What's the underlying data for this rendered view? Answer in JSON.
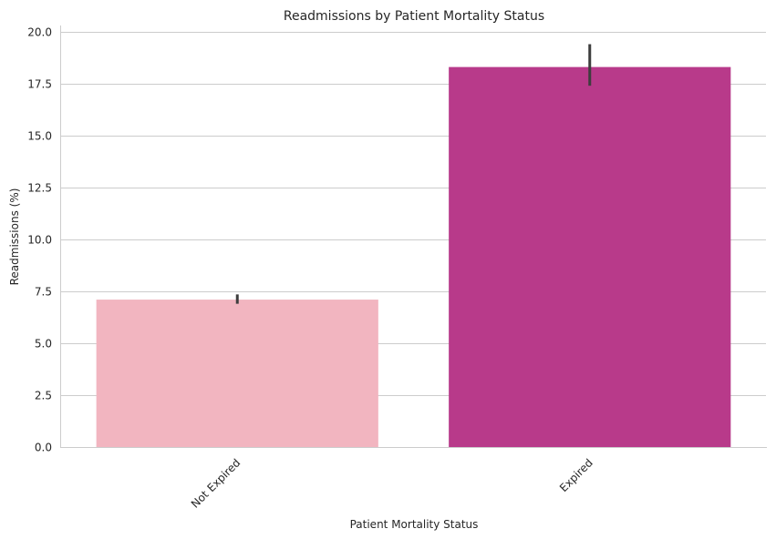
{
  "chart_data": {
    "type": "bar",
    "title": "Readmissions by Patient Mortality Status",
    "xlabel": "Patient Mortality Status",
    "ylabel": "Readmissions (%)",
    "categories": [
      "Not Expired",
      "Expired"
    ],
    "values": [
      7.1,
      18.3
    ],
    "error_low": [
      6.9,
      17.4
    ],
    "error_high": [
      7.35,
      19.4
    ],
    "colors": [
      "#f2b5c0",
      "#b83a8a"
    ],
    "ylim": [
      0,
      20.3
    ],
    "yticks": [
      0.0,
      2.5,
      5.0,
      7.5,
      10.0,
      12.5,
      15.0,
      17.5,
      20.0
    ],
    "ytick_labels": [
      "0.0",
      "2.5",
      "5.0",
      "7.5",
      "10.0",
      "12.5",
      "15.0",
      "17.5",
      "20.0"
    ],
    "grid": "horizontal",
    "error_color": "#3d3d3d"
  }
}
